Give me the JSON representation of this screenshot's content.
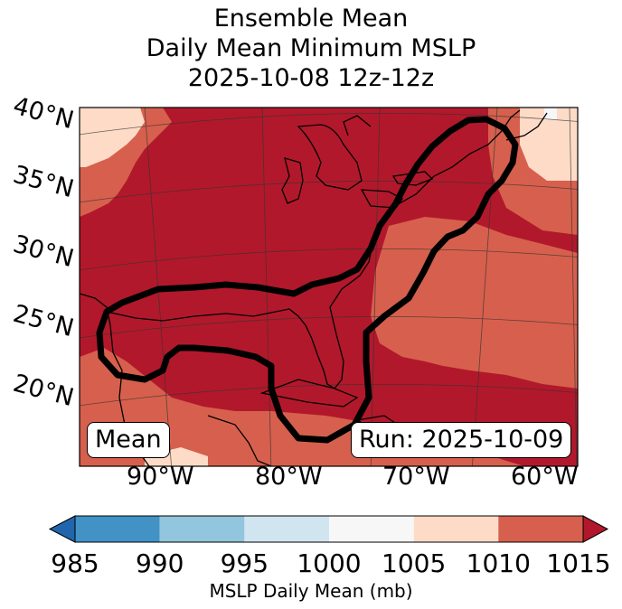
{
  "title": {
    "line1": "Ensemble Mean",
    "line2": "Daily Mean Minimum MSLP",
    "line3": "2025-10-08 12z-12z"
  },
  "map": {
    "lat_labels": [
      "40°N",
      "35°N",
      "30°N",
      "25°N",
      "20°N"
    ],
    "lon_labels": [
      "90°W",
      "80°W",
      "70°W",
      "60°W"
    ],
    "panel_label": "Mean",
    "run_label": "Run: 2025-10-09",
    "contour": "ensemble track envelope (black outline)"
  },
  "colorbar": {
    "ticks": [
      "985",
      "990",
      "995",
      "1000",
      "1005",
      "1010",
      "1015"
    ],
    "label": "MSLP Daily Mean (mb)",
    "colors": [
      "#4292c6",
      "#92c5de",
      "#d1e5f0",
      "#f7f7f7",
      "#fddbc7",
      "#d6604d",
      "#b2182b",
      "#2166ac"
    ]
  }
}
